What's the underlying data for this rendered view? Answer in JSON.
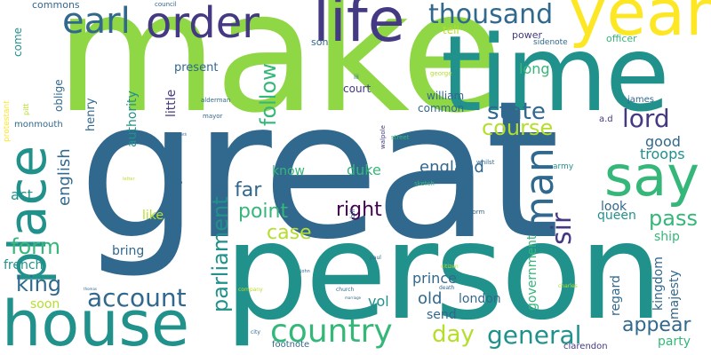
{
  "palette": {
    "yellow": "#fde725",
    "lightgreen": "#8fd744",
    "green": "#35b779",
    "teal": "#21918c",
    "blue": "#31688e",
    "indigo": "#443983",
    "purple": "#440154",
    "lime": "#b5de2b"
  },
  "words": [
    {
      "text": "make",
      "color": "lightgreen"
    },
    {
      "text": "great",
      "color": "blue"
    },
    {
      "text": "person",
      "color": "teal"
    },
    {
      "text": "time",
      "color": "teal"
    },
    {
      "text": "year",
      "color": "yellow"
    },
    {
      "text": "house",
      "color": "teal"
    },
    {
      "text": "place",
      "color": "teal"
    },
    {
      "text": "life",
      "color": "indigo"
    },
    {
      "text": "order",
      "color": "indigo"
    },
    {
      "text": "earl",
      "color": "blue"
    },
    {
      "text": "man",
      "color": "blue"
    },
    {
      "text": "say",
      "color": "green"
    },
    {
      "text": "thousand",
      "color": "blue"
    },
    {
      "text": "country",
      "color": "green"
    },
    {
      "text": "account",
      "color": "blue"
    },
    {
      "text": "general",
      "color": "teal"
    },
    {
      "text": "state",
      "color": "blue"
    },
    {
      "text": "lord",
      "color": "indigo"
    },
    {
      "text": "course",
      "color": "lime"
    },
    {
      "text": "sir",
      "color": "indigo"
    },
    {
      "text": "parliament",
      "color": "teal"
    },
    {
      "text": "follow",
      "color": "green"
    },
    {
      "text": "appear",
      "color": "blue"
    },
    {
      "text": "right",
      "color": "purple"
    },
    {
      "text": "point",
      "color": "green"
    },
    {
      "text": "king",
      "color": "blue"
    },
    {
      "text": "day",
      "color": "lime"
    },
    {
      "text": "far",
      "color": "blue"
    },
    {
      "text": "pass",
      "color": "green"
    },
    {
      "text": "case",
      "color": "lime"
    },
    {
      "text": "form",
      "color": "green"
    },
    {
      "text": "english",
      "color": "blue"
    },
    {
      "text": "england",
      "color": "blue"
    },
    {
      "text": "duke",
      "color": "green"
    },
    {
      "text": "good",
      "color": "blue"
    },
    {
      "text": "troops",
      "color": "teal"
    },
    {
      "text": "long",
      "color": "green"
    },
    {
      "text": "look",
      "color": "blue"
    },
    {
      "text": "queen",
      "color": "teal"
    },
    {
      "text": "government",
      "color": "green"
    },
    {
      "text": "kingdom",
      "color": "blue"
    },
    {
      "text": "majesty",
      "color": "blue"
    },
    {
      "text": "regard",
      "color": "blue"
    },
    {
      "text": "prince",
      "color": "blue"
    },
    {
      "text": "old",
      "color": "blue"
    },
    {
      "text": "send",
      "color": "blue"
    },
    {
      "text": "london",
      "color": "blue"
    },
    {
      "text": "vol",
      "color": "teal"
    },
    {
      "text": "party",
      "color": "green"
    },
    {
      "text": "ship",
      "color": "green"
    },
    {
      "text": "french",
      "color": "teal"
    },
    {
      "text": "soon",
      "color": "lime"
    },
    {
      "text": "act",
      "color": "teal"
    },
    {
      "text": "bring",
      "color": "blue"
    },
    {
      "text": "like",
      "color": "lime"
    },
    {
      "text": "family",
      "color": "blue"
    },
    {
      "text": "know",
      "color": "green"
    },
    {
      "text": "authority",
      "color": "teal"
    },
    {
      "text": "little",
      "color": "indigo"
    },
    {
      "text": "henry",
      "color": "blue"
    },
    {
      "text": "oblige",
      "color": "blue"
    },
    {
      "text": "come",
      "color": "teal"
    },
    {
      "text": "monmouth",
      "color": "blue"
    },
    {
      "text": "commons",
      "color": "blue"
    },
    {
      "text": "present",
      "color": "blue"
    },
    {
      "text": "court",
      "color": "indigo"
    },
    {
      "text": "william",
      "color": "blue"
    },
    {
      "text": "common",
      "color": "blue"
    },
    {
      "text": "james",
      "color": "blue"
    },
    {
      "text": "son",
      "color": "blue"
    },
    {
      "text": "tell",
      "color": "lime"
    },
    {
      "text": "power",
      "color": "indigo"
    },
    {
      "text": "officer",
      "color": "green"
    },
    {
      "text": "sidenote",
      "color": "blue"
    },
    {
      "text": "a.d",
      "color": "indigo"
    },
    {
      "text": "army",
      "color": "teal"
    },
    {
      "text": "footnote",
      "color": "blue"
    },
    {
      "text": "clarendon",
      "color": "indigo"
    },
    {
      "text": "protestant",
      "color": "yellow"
    },
    {
      "text": "pitt",
      "color": "lime"
    },
    {
      "text": "council",
      "color": "blue"
    },
    {
      "text": "george",
      "color": "lime"
    },
    {
      "text": "iii",
      "color": "blue"
    },
    {
      "text": "alderman",
      "color": "blue"
    },
    {
      "text": "mayor",
      "color": "blue"
    },
    {
      "text": "walpole",
      "color": "indigo"
    },
    {
      "text": "street",
      "color": "green"
    },
    {
      "text": "whilst",
      "color": "blue"
    },
    {
      "text": "sketch",
      "color": "green"
    },
    {
      "text": "bill",
      "color": "blue"
    },
    {
      "text": "reform",
      "color": "blue"
    },
    {
      "text": "paul",
      "color": "blue"
    },
    {
      "text": "citizen",
      "color": "lime"
    },
    {
      "text": "death",
      "color": "blue"
    },
    {
      "text": "church",
      "color": "blue"
    },
    {
      "text": "charles",
      "color": "lime"
    },
    {
      "text": "company",
      "color": "lime"
    },
    {
      "text": "city",
      "color": "blue"
    },
    {
      "text": "elizabeth",
      "color": "blue"
    },
    {
      "text": "letter",
      "color": "lime"
    },
    {
      "text": "john",
      "color": "blue"
    },
    {
      "text": "marriage",
      "color": "blue"
    },
    {
      "text": "thomas",
      "color": "blue"
    }
  ]
}
